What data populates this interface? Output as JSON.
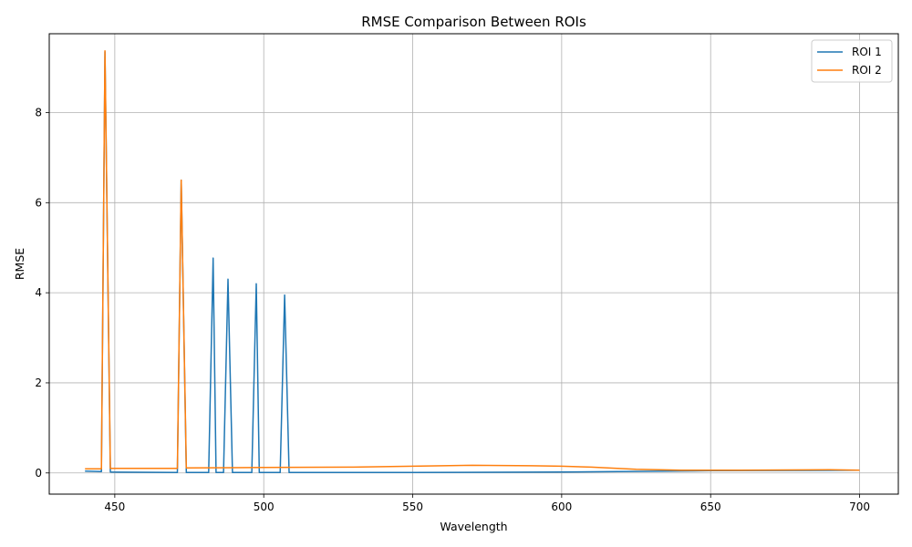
{
  "chart_data": {
    "type": "line",
    "title": "RMSE Comparison Between ROIs",
    "xlabel": "Wavelength",
    "ylabel": "RMSE",
    "xlim": [
      428,
      713
    ],
    "ylim": [
      -0.47,
      9.75
    ],
    "xticks": [
      450,
      500,
      550,
      600,
      650,
      700
    ],
    "yticks": [
      0,
      2,
      4,
      6,
      8
    ],
    "grid": true,
    "legend_position": "top-right",
    "series": [
      {
        "name": "ROI 1",
        "color": "#1f77b4",
        "points": [
          [
            440,
            0.04
          ],
          [
            445.5,
            0.03
          ],
          [
            446.7,
            9.35
          ],
          [
            448.5,
            0.02
          ],
          [
            471,
            0.01
          ],
          [
            472.3,
            6.5
          ],
          [
            474,
            0.01
          ],
          [
            481.5,
            0.01
          ],
          [
            483,
            4.77
          ],
          [
            484,
            0.01
          ],
          [
            486.5,
            0.01
          ],
          [
            488,
            4.3
          ],
          [
            489.5,
            0.01
          ],
          [
            496,
            0.01
          ],
          [
            497.5,
            4.2
          ],
          [
            498.5,
            0.01
          ],
          [
            505.5,
            0.01
          ],
          [
            507,
            3.95
          ],
          [
            508.5,
            0.01
          ],
          [
            550,
            0.01
          ],
          [
            600,
            0.02
          ],
          [
            650,
            0.05
          ],
          [
            700,
            0.06
          ]
        ]
      },
      {
        "name": "ROI 2",
        "color": "#ff7f0e",
        "points": [
          [
            440,
            0.09
          ],
          [
            445.5,
            0.09
          ],
          [
            446.7,
            9.37
          ],
          [
            448.5,
            0.1
          ],
          [
            471,
            0.1
          ],
          [
            472.3,
            6.5
          ],
          [
            474,
            0.11
          ],
          [
            500,
            0.12
          ],
          [
            530,
            0.13
          ],
          [
            550,
            0.15
          ],
          [
            570,
            0.17
          ],
          [
            590,
            0.16
          ],
          [
            600,
            0.15
          ],
          [
            610,
            0.13
          ],
          [
            625,
            0.08
          ],
          [
            640,
            0.06
          ],
          [
            660,
            0.06
          ],
          [
            690,
            0.07
          ],
          [
            700,
            0.06
          ]
        ]
      }
    ]
  }
}
